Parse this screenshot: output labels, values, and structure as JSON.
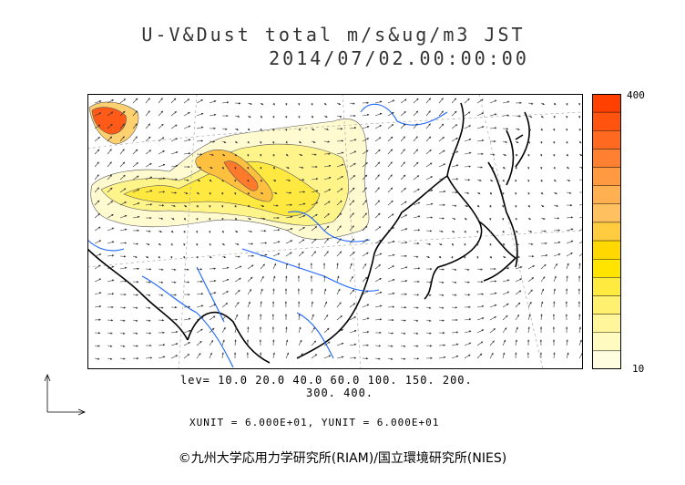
{
  "title": {
    "line1": "U-V&Dust total m/s&ug/m3 JST",
    "line2": "2014/07/02.00:00:00"
  },
  "colorbar": {
    "max_label": "400",
    "min_label": "10",
    "colors": [
      "#fffde0",
      "#fffac0",
      "#fff59a",
      "#fff070",
      "#ffeb40",
      "#ffe400",
      "#ffd800",
      "#ffcc40",
      "#ffc060",
      "#ffb050",
      "#ff9a40",
      "#ff8030",
      "#ff6a20",
      "#ff5410",
      "#ff4000"
    ]
  },
  "levels": {
    "line1": "lev= 10.0 20.0 40.0 60.0 100. 150. 200.",
    "line2": "300. 400."
  },
  "units": "XUNIT = 6.000E+01, YUNIT = 6.000E+01",
  "copyright": "©九州大学応用力学研究所(RIAM)/国立環境研究所(NIES)",
  "map": {
    "land_color": "#000000",
    "river_color": "#1a66ff",
    "grid_color": "#aaaaaa"
  }
}
